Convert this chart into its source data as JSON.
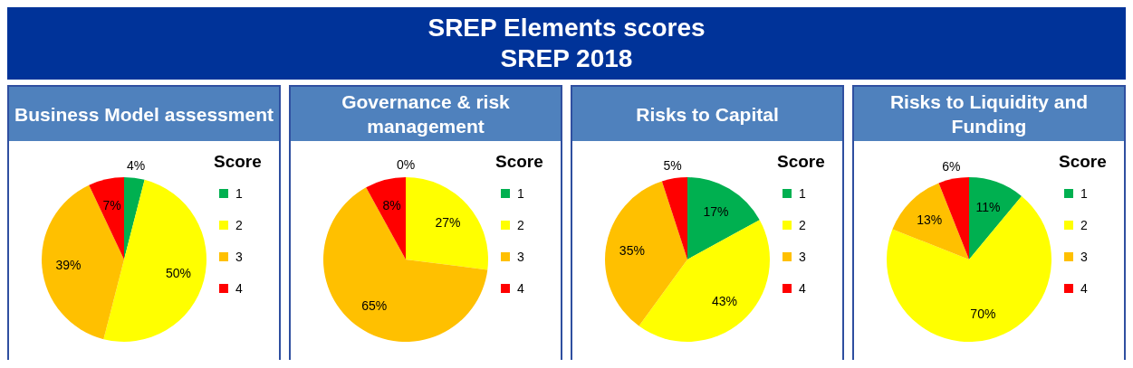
{
  "chart_data": [
    {
      "type": "other",
      "title": "SREP Elements scores",
      "subtitle": "SREP 2018"
    },
    {
      "type": "pie",
      "title": "Business Model assessment",
      "categories": [
        "1",
        "2",
        "3",
        "4"
      ],
      "values": [
        4,
        50,
        39,
        7
      ],
      "value_labels": [
        "4%",
        "50%",
        "39%",
        "7%"
      ],
      "colors": [
        "#00b050",
        "#ffff00",
        "#ffc000",
        "#ff0000"
      ],
      "legend": "right",
      "legend_title": "Score"
    },
    {
      "type": "pie",
      "title": "Governance & risk management",
      "categories": [
        "1",
        "2",
        "3",
        "4"
      ],
      "values": [
        0,
        27,
        65,
        8
      ],
      "value_labels": [
        "0%",
        "27%",
        "65%",
        "8%"
      ],
      "colors": [
        "#00b050",
        "#ffff00",
        "#ffc000",
        "#ff0000"
      ],
      "legend": "right",
      "legend_title": "Score"
    },
    {
      "type": "pie",
      "title": "Risks to Capital",
      "categories": [
        "1",
        "2",
        "3",
        "4"
      ],
      "values": [
        17,
        43,
        35,
        5
      ],
      "value_labels": [
        "17%",
        "43%",
        "35%",
        "5%"
      ],
      "colors": [
        "#00b050",
        "#ffff00",
        "#ffc000",
        "#ff0000"
      ],
      "legend": "right",
      "legend_title": "Score"
    },
    {
      "type": "pie",
      "title": "Risks to Liquidity and Funding",
      "categories": [
        "1",
        "2",
        "3",
        "4"
      ],
      "values": [
        11,
        70,
        13,
        6
      ],
      "value_labels": [
        "11%",
        "70%",
        "13%",
        "6%"
      ],
      "colors": [
        "#00b050",
        "#ffff00",
        "#ffc000",
        "#ff0000"
      ],
      "legend": "right",
      "legend_title": "Score"
    }
  ]
}
